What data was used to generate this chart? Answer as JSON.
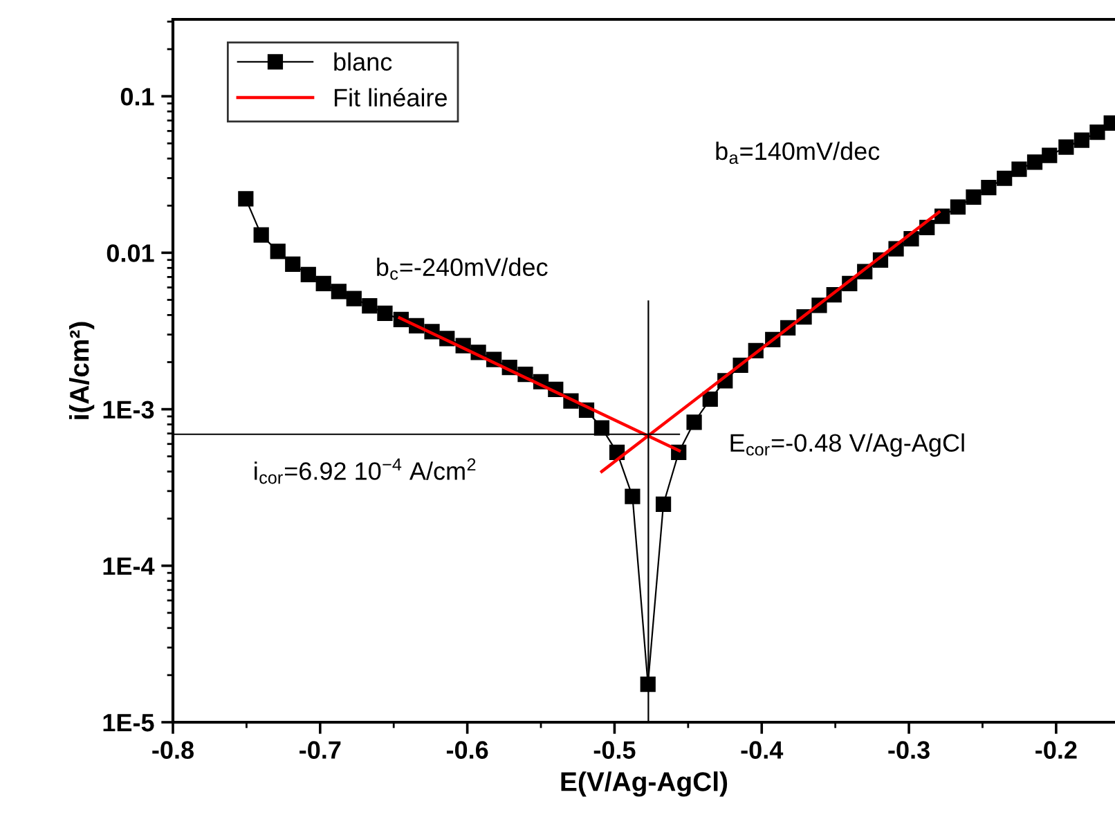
{
  "chart_data": {
    "type": "line",
    "xlabel": "E(V/Ag-AgCl)",
    "ylabel": "i(A/cm²)",
    "log": "y",
    "xlim": [
      -0.8,
      -0.16
    ],
    "xticks": [
      -0.8,
      -0.7,
      -0.6,
      -0.5,
      -0.4,
      -0.3,
      -0.2
    ],
    "ylim": [
      1e-05,
      0.31
    ],
    "yticks": [
      {
        "value": 0.1,
        "label": "0.1"
      },
      {
        "value": 0.01,
        "label": "0.01"
      },
      {
        "value": 0.001,
        "label": "1E-3"
      },
      {
        "value": 0.0001,
        "label": "1E-4"
      },
      {
        "value": 1e-05,
        "label": "1E-5"
      }
    ],
    "legend": "top left",
    "grid": false,
    "series": [
      {
        "name": "blanc",
        "color": "#000000",
        "marker": "square",
        "line_style": "solid",
        "x": [
          -0.7505,
          -0.74,
          -0.7287,
          -0.7186,
          -0.708,
          -0.6977,
          -0.6873,
          -0.677,
          -0.6664,
          -0.656,
          -0.645,
          -0.6345,
          -0.624,
          -0.6138,
          -0.6028,
          -0.5925,
          -0.5819,
          -0.5713,
          -0.5606,
          -0.55,
          -0.54,
          -0.5296,
          -0.519,
          -0.5087,
          -0.4983,
          -0.4878,
          -0.4773,
          -0.4668,
          -0.4564,
          -0.4459,
          -0.435,
          -0.4249,
          -0.4144,
          -0.404,
          -0.3925,
          -0.3822,
          -0.3712,
          -0.3609,
          -0.3509,
          -0.3403,
          -0.33,
          -0.3193,
          -0.3087,
          -0.2984,
          -0.2877,
          -0.2774,
          -0.2667,
          -0.2561,
          -0.2458,
          -0.2351,
          -0.2251,
          -0.2145,
          -0.2045,
          -0.1932,
          -0.1826,
          -0.172,
          -0.1625
        ],
        "values": [
          0.0221,
          0.013,
          0.0102,
          0.00845,
          0.00726,
          0.00635,
          0.00565,
          0.0051,
          0.00458,
          0.0041,
          0.00374,
          0.00342,
          0.00313,
          0.00283,
          0.00255,
          0.00231,
          0.00208,
          0.00185,
          0.00167,
          0.0015,
          0.00134,
          0.00113,
          0.000986,
          0.00076,
          0.00053,
          0.000277,
          1.75e-05,
          0.000247,
          0.00053,
          0.000826,
          0.00116,
          0.00152,
          0.00191,
          0.00237,
          0.00279,
          0.00331,
          0.00389,
          0.00461,
          0.00539,
          0.00635,
          0.00757,
          0.00898,
          0.0106,
          0.0123,
          0.0145,
          0.0171,
          0.0196,
          0.0227,
          0.0261,
          0.0299,
          0.0342,
          0.0379,
          0.0419,
          0.0473,
          0.0524,
          0.0589,
          0.0675
        ]
      },
      {
        "name": "Fit linéaire",
        "color": "#ff0000",
        "marker": "none",
        "line_style": "solid",
        "x": [
          -0.646,
          -0.456
        ],
        "values": [
          0.00384,
          0.000543
        ]
      },
      {
        "color": "#ff0000",
        "marker": "none",
        "line_style": "solid",
        "x": [
          -0.5087,
          -0.2796
        ],
        "values": [
          0.0004,
          0.0182
        ]
      },
      {
        "color": "#000000",
        "marker": "none",
        "line_style": "solid",
        "x": [
          -0.477,
          -0.477
        ],
        "values": [
          1e-05,
          0.0049
        ]
      },
      {
        "color": "#000000",
        "marker": "none",
        "line_style": "solid",
        "x": [
          -0.8,
          -0.456
        ],
        "values": [
          0.000692,
          0.000692
        ]
      }
    ],
    "annotations": [
      "b$_{a}$=140mV/dec",
      "b$_{c}$=-240mV/dec",
      "E$_{cor}$=-0.48 V/Ag-AgCl",
      "i$_{cor}$=6.92 10$^{−4}$ A/cm$^{2}$"
    ]
  }
}
